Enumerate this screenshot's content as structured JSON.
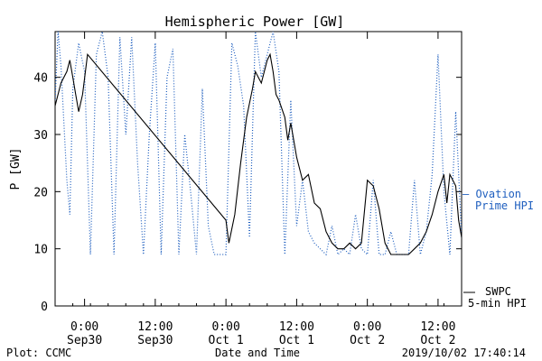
{
  "chart_data": {
    "type": "line",
    "title": "Hemispheric Power [GW]",
    "ylabel": "P [GW]",
    "xlabel": "Date and Time",
    "xlim": [
      "2019-09-29T19:00",
      "2019-10-02T16:00"
    ],
    "ylim": [
      0,
      48
    ],
    "yticks": [
      0,
      10,
      20,
      30,
      40
    ],
    "xticks": [
      {
        "x": "2019-09-30T00:00",
        "time": "0:00",
        "date": "Sep30"
      },
      {
        "x": "2019-09-30T12:00",
        "time": "12:00",
        "date": "Sep30"
      },
      {
        "x": "2019-10-01T00:00",
        "time": "0:00",
        "date": "Oct 1"
      },
      {
        "x": "2019-10-01T12:00",
        "time": "12:00",
        "date": "Oct 1"
      },
      {
        "x": "2019-10-02T00:00",
        "time": "0:00",
        "date": "Oct 2"
      },
      {
        "x": "2019-10-02T12:00",
        "time": "12:00",
        "date": "Oct 2"
      }
    ],
    "series": [
      {
        "name": "SWPC 5-min HPI",
        "legend_lines": [
          "SWPC",
          "5-min HPI"
        ],
        "color": "#000000",
        "style": "solid",
        "points": [
          [
            "2019-09-29T19:00",
            35
          ],
          [
            "2019-09-29T20:00",
            39
          ],
          [
            "2019-09-29T21:00",
            41
          ],
          [
            "2019-09-29T21:30",
            43
          ],
          [
            "2019-09-29T22:00",
            40
          ],
          [
            "2019-09-29T22:30",
            37
          ],
          [
            "2019-09-29T23:00",
            34
          ],
          [
            "2019-09-29T23:40",
            37
          ],
          [
            "2019-09-30T00:30",
            44
          ],
          [
            "2019-10-01T00:00",
            15
          ],
          [
            "2019-10-01T00:30",
            11
          ],
          [
            "2019-10-01T01:30",
            16
          ],
          [
            "2019-10-01T02:30",
            25
          ],
          [
            "2019-10-01T03:30",
            33
          ],
          [
            "2019-10-01T04:30",
            38
          ],
          [
            "2019-10-01T05:00",
            41
          ],
          [
            "2019-10-01T05:30",
            40
          ],
          [
            "2019-10-01T06:00",
            39
          ],
          [
            "2019-10-01T07:00",
            43
          ],
          [
            "2019-10-01T07:30",
            44
          ],
          [
            "2019-10-01T08:00",
            41
          ],
          [
            "2019-10-01T08:30",
            37
          ],
          [
            "2019-10-01T09:00",
            36
          ],
          [
            "2019-10-01T10:00",
            33
          ],
          [
            "2019-10-01T10:30",
            29
          ],
          [
            "2019-10-01T11:00",
            32
          ],
          [
            "2019-10-01T12:00",
            26
          ],
          [
            "2019-10-01T13:00",
            22
          ],
          [
            "2019-10-01T14:00",
            23
          ],
          [
            "2019-10-01T15:00",
            18
          ],
          [
            "2019-10-01T16:00",
            17
          ],
          [
            "2019-10-01T17:00",
            13
          ],
          [
            "2019-10-01T18:00",
            11
          ],
          [
            "2019-10-01T19:00",
            10
          ],
          [
            "2019-10-01T20:00",
            10
          ],
          [
            "2019-10-01T21:00",
            11
          ],
          [
            "2019-10-01T22:00",
            10
          ],
          [
            "2019-10-01T23:00",
            11
          ],
          [
            "2019-10-02T00:00",
            22
          ],
          [
            "2019-10-02T01:00",
            21
          ],
          [
            "2019-10-02T02:00",
            17
          ],
          [
            "2019-10-02T03:00",
            11
          ],
          [
            "2019-10-02T04:00",
            9
          ],
          [
            "2019-10-02T05:00",
            9
          ],
          [
            "2019-10-02T06:00",
            9
          ],
          [
            "2019-10-02T07:00",
            9
          ],
          [
            "2019-10-02T08:00",
            10
          ],
          [
            "2019-10-02T09:00",
            11
          ],
          [
            "2019-10-02T10:00",
            13
          ],
          [
            "2019-10-02T11:00",
            16
          ],
          [
            "2019-10-02T12:00",
            20
          ],
          [
            "2019-10-02T13:00",
            23
          ],
          [
            "2019-10-02T13:30",
            18
          ],
          [
            "2019-10-02T14:00",
            23
          ],
          [
            "2019-10-02T15:00",
            21
          ],
          [
            "2019-10-02T15:30",
            15
          ],
          [
            "2019-10-02T16:00",
            12
          ]
        ]
      },
      {
        "name": "Ovation Prime HPI",
        "legend_lines": [
          "– Ovation",
          "Prime HPI"
        ],
        "color": "#1f5fbf",
        "style": "dotted",
        "points": [
          [
            "2019-09-29T19:00",
            36
          ],
          [
            "2019-09-29T19:30",
            48
          ],
          [
            "2019-09-29T20:00",
            42
          ],
          [
            "2019-09-29T21:00",
            22
          ],
          [
            "2019-09-29T21:30",
            16
          ],
          [
            "2019-09-29T22:00",
            38
          ],
          [
            "2019-09-29T23:00",
            46
          ],
          [
            "2019-09-30T00:00",
            41
          ],
          [
            "2019-09-30T01:00",
            9
          ],
          [
            "2019-09-30T02:00",
            44
          ],
          [
            "2019-09-30T03:00",
            48
          ],
          [
            "2019-09-30T04:00",
            40
          ],
          [
            "2019-09-30T05:00",
            9
          ],
          [
            "2019-09-30T06:00",
            47
          ],
          [
            "2019-09-30T07:00",
            30
          ],
          [
            "2019-09-30T08:00",
            47
          ],
          [
            "2019-09-30T09:00",
            25
          ],
          [
            "2019-09-30T10:00",
            9
          ],
          [
            "2019-09-30T11:00",
            30
          ],
          [
            "2019-09-30T12:00",
            46
          ],
          [
            "2019-09-30T13:00",
            9
          ],
          [
            "2019-09-30T14:00",
            40
          ],
          [
            "2019-09-30T15:00",
            45
          ],
          [
            "2019-09-30T16:00",
            9
          ],
          [
            "2019-09-30T17:00",
            30
          ],
          [
            "2019-09-30T18:00",
            20
          ],
          [
            "2019-09-30T19:00",
            9
          ],
          [
            "2019-09-30T20:00",
            38
          ],
          [
            "2019-09-30T21:00",
            14
          ],
          [
            "2019-09-30T22:00",
            9
          ],
          [
            "2019-09-30T23:00",
            9
          ],
          [
            "2019-10-01T00:00",
            9
          ],
          [
            "2019-10-01T01:00",
            46
          ],
          [
            "2019-10-01T02:00",
            42
          ],
          [
            "2019-10-01T03:00",
            35
          ],
          [
            "2019-10-01T04:00",
            12
          ],
          [
            "2019-10-01T05:00",
            48
          ],
          [
            "2019-10-01T06:00",
            40
          ],
          [
            "2019-10-01T07:00",
            44
          ],
          [
            "2019-10-01T08:00",
            48
          ],
          [
            "2019-10-01T09:00",
            41
          ],
          [
            "2019-10-01T10:00",
            9
          ],
          [
            "2019-10-01T11:00",
            36
          ],
          [
            "2019-10-01T12:00",
            14
          ],
          [
            "2019-10-01T13:00",
            22
          ],
          [
            "2019-10-01T14:00",
            13
          ],
          [
            "2019-10-01T15:00",
            11
          ],
          [
            "2019-10-01T16:00",
            10
          ],
          [
            "2019-10-01T17:00",
            9
          ],
          [
            "2019-10-01T18:00",
            14
          ],
          [
            "2019-10-01T19:00",
            9
          ],
          [
            "2019-10-01T20:00",
            10
          ],
          [
            "2019-10-01T21:00",
            9
          ],
          [
            "2019-10-01T22:00",
            16
          ],
          [
            "2019-10-01T23:00",
            10
          ],
          [
            "2019-10-02T00:00",
            9
          ],
          [
            "2019-10-02T01:00",
            22
          ],
          [
            "2019-10-02T02:00",
            9
          ],
          [
            "2019-10-02T03:00",
            9
          ],
          [
            "2019-10-02T04:00",
            13
          ],
          [
            "2019-10-02T05:00",
            9
          ],
          [
            "2019-10-02T06:00",
            9
          ],
          [
            "2019-10-02T07:00",
            9
          ],
          [
            "2019-10-02T08:00",
            22
          ],
          [
            "2019-10-02T09:00",
            9
          ],
          [
            "2019-10-02T10:00",
            13
          ],
          [
            "2019-10-02T11:00",
            23
          ],
          [
            "2019-10-02T12:00",
            44
          ],
          [
            "2019-10-02T13:00",
            20
          ],
          [
            "2019-10-02T14:00",
            9
          ],
          [
            "2019-10-02T15:00",
            34
          ],
          [
            "2019-10-02T16:00",
            12
          ]
        ]
      }
    ]
  },
  "footer": {
    "left": "Plot: CCMC",
    "center": "Date and Time",
    "right": "2019/10/02 17:40:14"
  }
}
